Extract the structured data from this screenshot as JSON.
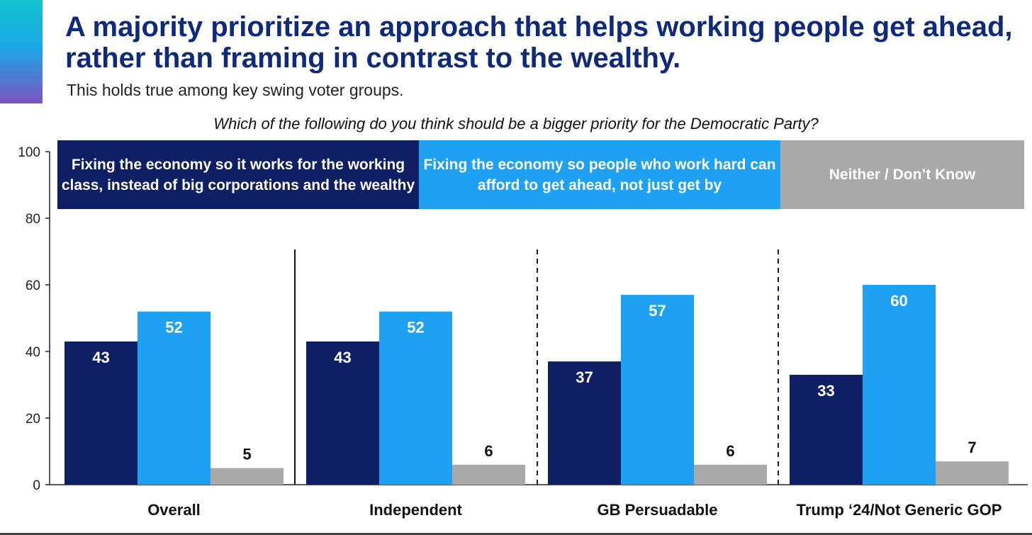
{
  "title": "A majority prioritize an approach that helps working people get ahead, rather than framing in contrast to the wealthy.",
  "subtitle": "This holds true among key swing voter groups.",
  "question": "Which of the following do you think should be a bigger priority for the Democratic Party?",
  "colors": {
    "title": "#0f2a7a",
    "dark_navy": "#0f1f63",
    "sky_blue": "#1ea1f2",
    "gray": "#a9a9a9"
  },
  "chart_data": {
    "type": "bar",
    "categories": [
      "Overall",
      "Independent",
      "GB Persuadable",
      "Trump ‘24/Not Generic GOP"
    ],
    "series": [
      {
        "name": "Fixing the economy so it works for the working class, instead of big corporations and the wealthy",
        "color": "#0f1f63",
        "label_color": "#ffffff",
        "values": [
          43,
          43,
          37,
          33
        ]
      },
      {
        "name": "Fixing the economy so people who work hard can afford to get ahead, not just get by",
        "color": "#1ea1f2",
        "label_color": "#ffffff",
        "values": [
          52,
          52,
          57,
          60
        ]
      },
      {
        "name": "Neither / Don’t Know",
        "color": "#a9a9a9",
        "label_color": "#111111",
        "values": [
          5,
          6,
          6,
          7
        ]
      }
    ],
    "ylim": [
      0,
      100
    ],
    "yticks": [
      0,
      20,
      40,
      60,
      80,
      100
    ],
    "xlabel": "",
    "ylabel": "",
    "legend_position": "top"
  }
}
